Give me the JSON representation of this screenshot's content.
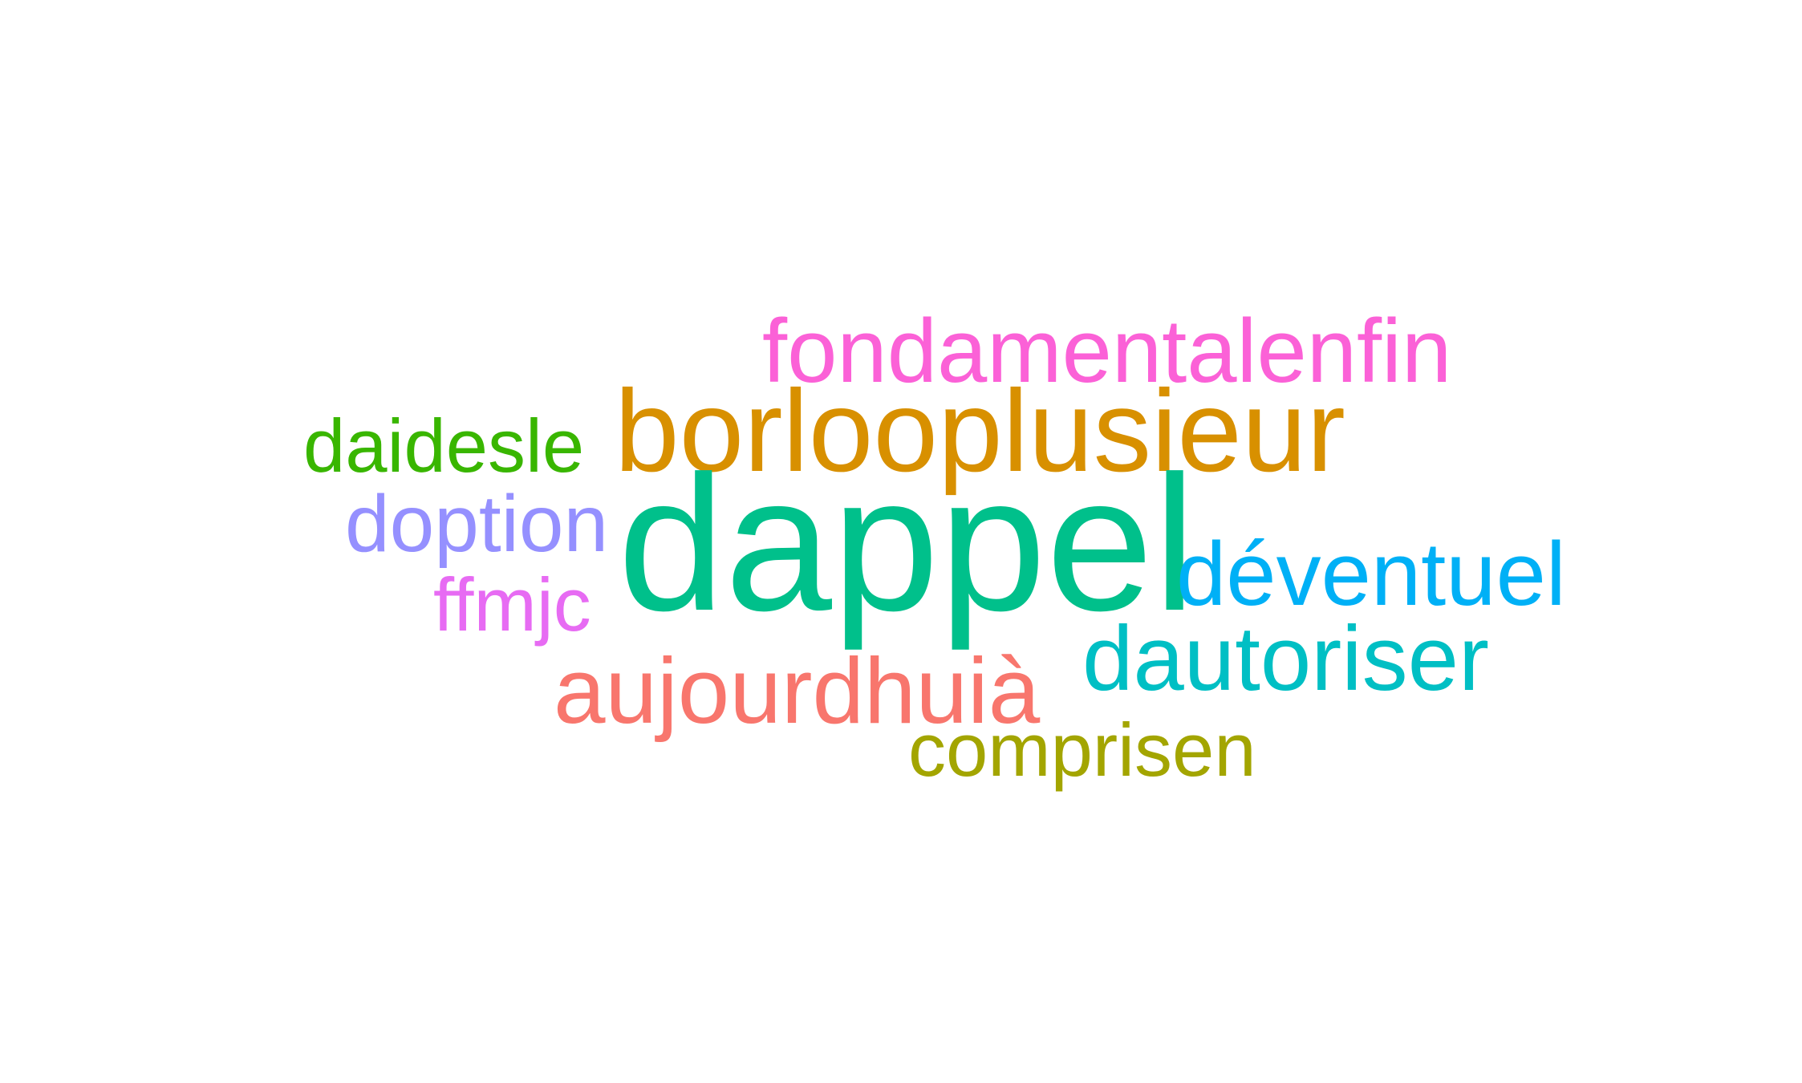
{
  "words": [
    {
      "id": "fondamental",
      "text": "fondamentalenfin",
      "color": "#fb61d7"
    },
    {
      "id": "borloo",
      "text": "borlooplusieur",
      "color": "#d89000"
    },
    {
      "id": "daidesle",
      "text": "daidesle",
      "color": "#39b600"
    },
    {
      "id": "doption",
      "text": "doption",
      "color": "#9590ff"
    },
    {
      "id": "dappel",
      "text": "dappel",
      "color": "#00c08b"
    },
    {
      "id": "deventuel",
      "text": "déventuel",
      "color": "#00b0f6"
    },
    {
      "id": "ffmjc",
      "text": "ffmjc",
      "color": "#e76bf3"
    },
    {
      "id": "dautoriser",
      "text": "dautoriser",
      "color": "#00bfc4"
    },
    {
      "id": "aujourdhui",
      "text": "aujourdhuià",
      "color": "#f8766d"
    },
    {
      "id": "comprisen",
      "text": "comprisen",
      "color": "#a3a500"
    }
  ]
}
